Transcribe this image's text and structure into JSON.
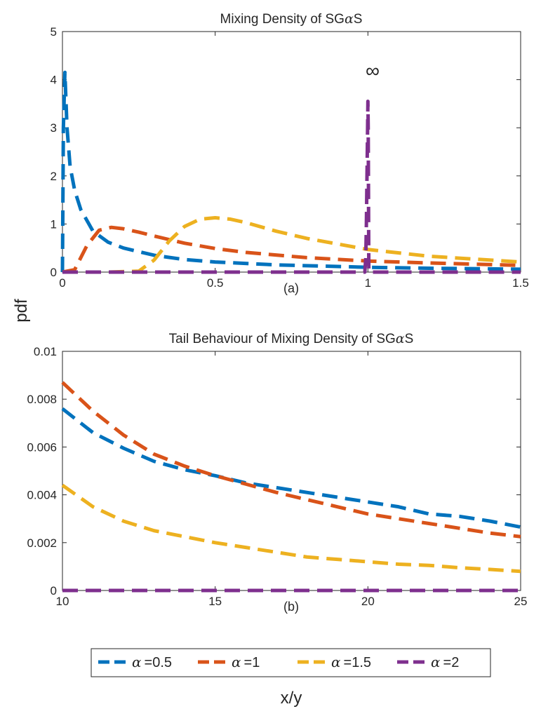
{
  "figure": {
    "ylabel": "pdf",
    "xlabel": "x/y",
    "legend": {
      "placement": "bottom-center",
      "greek": "α",
      "entries": [
        {
          "name": "=0.5",
          "color": "#0072BD"
        },
        {
          "name": "=1",
          "color": "#D95319"
        },
        {
          "name": "=1.5",
          "color": "#EDB120"
        },
        {
          "name": "=2",
          "color": "#7E2F8E"
        }
      ]
    }
  },
  "chart_data": [
    {
      "type": "line",
      "title_prefix": "Mixing Density of SG",
      "title_greek": "α",
      "title_suffix": "S",
      "caption": "(a)",
      "annotation": "∞",
      "xlim": [
        0,
        1.5
      ],
      "ylim": [
        0,
        5
      ],
      "xticks": [
        0,
        0.5,
        1,
        1.5
      ],
      "xtick_labels": [
        "0",
        "0.5",
        "1",
        "1.5"
      ],
      "yticks": [
        0,
        1,
        2,
        3,
        4,
        5
      ],
      "ytick_labels": [
        "0",
        "1",
        "2",
        "3",
        "4",
        "5"
      ],
      "series": [
        {
          "name": "α =0.5",
          "color": "#0072BD",
          "x": [
            0.0,
            0.003,
            0.008,
            0.015,
            0.025,
            0.04,
            0.06,
            0.1,
            0.15,
            0.2,
            0.3,
            0.4,
            0.5,
            0.7,
            1.0,
            1.2,
            1.5
          ],
          "y": [
            0.0,
            3.0,
            4.15,
            3.0,
            2.2,
            1.7,
            1.3,
            0.85,
            0.62,
            0.5,
            0.35,
            0.26,
            0.21,
            0.15,
            0.1,
            0.08,
            0.06
          ]
        },
        {
          "name": "α =1",
          "color": "#D95319",
          "x": [
            0.0,
            0.04,
            0.08,
            0.12,
            0.16,
            0.2,
            0.25,
            0.3,
            0.4,
            0.5,
            0.6,
            0.8,
            1.0,
            1.2,
            1.5
          ],
          "y": [
            0.0,
            0.05,
            0.55,
            0.87,
            0.93,
            0.9,
            0.83,
            0.75,
            0.6,
            0.49,
            0.41,
            0.3,
            0.23,
            0.19,
            0.14
          ]
        },
        {
          "name": "α =1.5",
          "color": "#EDB120",
          "x": [
            0.0,
            0.15,
            0.25,
            0.3,
            0.35,
            0.4,
            0.45,
            0.5,
            0.55,
            0.6,
            0.7,
            0.8,
            1.0,
            1.2,
            1.5
          ],
          "y": [
            0.0,
            0.0,
            0.02,
            0.25,
            0.65,
            0.95,
            1.1,
            1.13,
            1.1,
            1.03,
            0.85,
            0.7,
            0.47,
            0.33,
            0.21
          ]
        },
        {
          "name": "α =2",
          "color": "#7E2F8E",
          "x": [
            0.0,
            0.99,
            0.993,
            0.995,
            0.997,
            0.999,
            1.0,
            1.001,
            1.003,
            1.5
          ],
          "y": [
            0.0,
            0.0,
            0.3,
            1.0,
            2.0,
            3.0,
            3.55,
            3.0,
            0.0,
            0.0
          ]
        }
      ]
    },
    {
      "type": "line",
      "title_prefix": "Tail Behaviour of Mixing Density of SG",
      "title_greek": "α",
      "title_suffix": "S",
      "caption": "(b)",
      "xlim": [
        10,
        25
      ],
      "ylim": [
        0,
        0.01
      ],
      "xticks": [
        10,
        15,
        20,
        25
      ],
      "xtick_labels": [
        "10",
        "15",
        "20",
        "25"
      ],
      "yticks": [
        0,
        0.002,
        0.004,
        0.006,
        0.008,
        0.01
      ],
      "ytick_labels": [
        "0",
        "0.002",
        "0.004",
        "0.006",
        "0.008",
        "0.01"
      ],
      "series": [
        {
          "name": "α =0.5",
          "color": "#0072BD",
          "x": [
            10,
            11,
            12,
            13,
            14,
            15,
            16,
            17,
            18,
            19,
            20,
            21,
            22,
            23,
            24,
            25
          ],
          "y": [
            0.0076,
            0.0066,
            0.00595,
            0.0054,
            0.00505,
            0.0048,
            0.0045,
            0.0043,
            0.0041,
            0.0039,
            0.0037,
            0.0035,
            0.0032,
            0.0031,
            0.0029,
            0.00265
          ]
        },
        {
          "name": "α =1",
          "color": "#D95319",
          "x": [
            10,
            11,
            12,
            13,
            14,
            15,
            16,
            17,
            18,
            19,
            20,
            21,
            22,
            23,
            24,
            25
          ],
          "y": [
            0.0087,
            0.0075,
            0.0065,
            0.0057,
            0.0052,
            0.0048,
            0.00445,
            0.0041,
            0.0038,
            0.0035,
            0.0032,
            0.003,
            0.0028,
            0.0026,
            0.0024,
            0.00225
          ]
        },
        {
          "name": "α =1.5",
          "color": "#EDB120",
          "x": [
            10,
            11,
            12,
            13,
            14,
            15,
            16,
            17,
            18,
            19,
            20,
            21,
            22,
            23,
            24,
            25
          ],
          "y": [
            0.0044,
            0.0035,
            0.0029,
            0.0025,
            0.00225,
            0.002,
            0.0018,
            0.0016,
            0.0014,
            0.0013,
            0.0012,
            0.0011,
            0.00105,
            0.00095,
            0.00088,
            0.0008
          ]
        },
        {
          "name": "α =2",
          "color": "#7E2F8E",
          "x": [
            10,
            25
          ],
          "y": [
            0.0,
            0.0
          ]
        }
      ]
    }
  ]
}
